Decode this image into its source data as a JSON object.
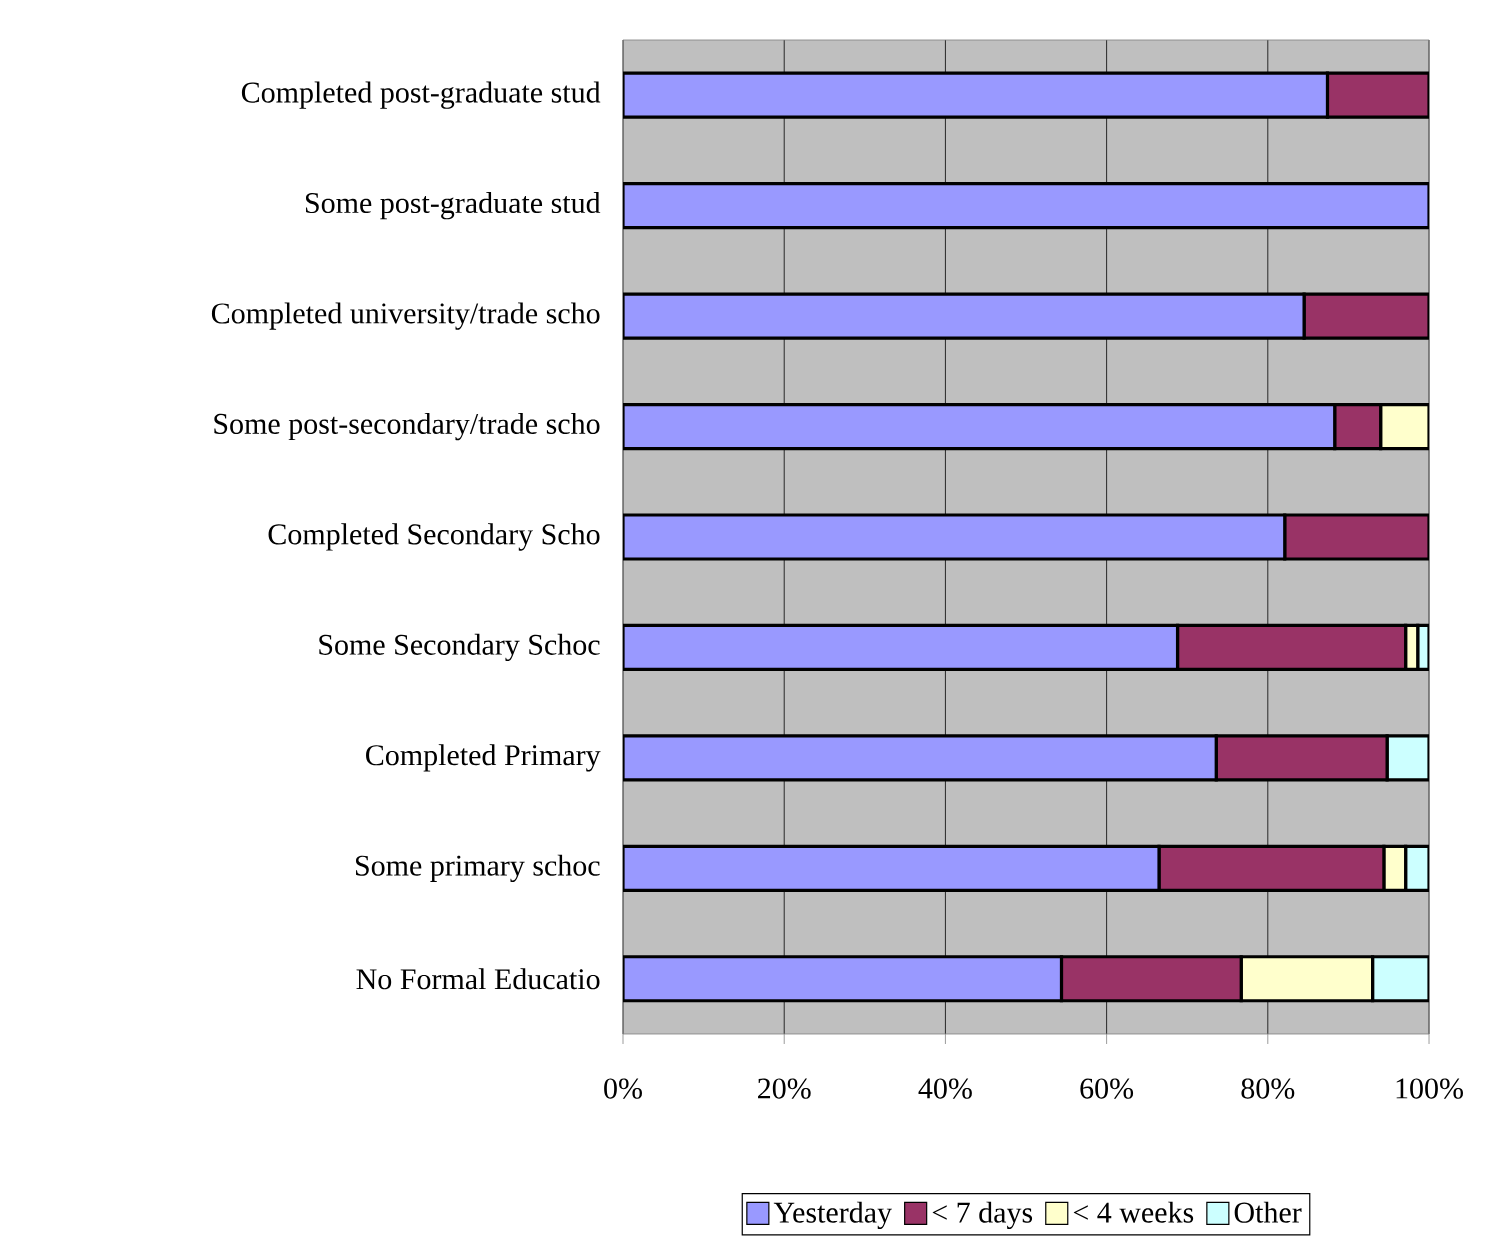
{
  "chart_data": {
    "type": "bar",
    "orientation": "horizontal",
    "stacked": true,
    "categories": [
      "Completed post-graduate stud",
      "Some post-graduate stud",
      "Completed university/trade scho",
      "Some post-secondary/trade scho",
      "Completed Secondary Scho",
      "Some Secondary Schoc",
      "Completed Primary",
      "Some primary schoc",
      "No Formal Educatio"
    ],
    "series": [
      {
        "name": "Yesterday",
        "color": "#9999ff",
        "values": [
          87.4,
          100,
          84.5,
          88.3,
          82.1,
          68.8,
          73.6,
          66.5,
          54.4
        ]
      },
      {
        "name": "< 7 days",
        "color": "#993366",
        "values": [
          12.6,
          0,
          15.5,
          5.7,
          17.9,
          28.3,
          21.2,
          27.9,
          22.3
        ]
      },
      {
        "name": "< 4 weeks",
        "color": "#ffffcc",
        "values": [
          0,
          0,
          0,
          6.0,
          0,
          1.5,
          0,
          2.7,
          16.3
        ]
      },
      {
        "name": "Other",
        "color": "#ccffff",
        "values": [
          0,
          0,
          0,
          0,
          0,
          1.4,
          5.2,
          2.9,
          7.0
        ]
      }
    ],
    "xlim": [
      0,
      100
    ],
    "xticks": [
      {
        "value": 0,
        "label": "0%"
      },
      {
        "value": 20,
        "label": "20%"
      },
      {
        "value": 40,
        "label": "40%"
      },
      {
        "value": 60,
        "label": "60%"
      },
      {
        "value": 80,
        "label": "80%"
      },
      {
        "value": 100,
        "label": "100%"
      }
    ],
    "grid": "x",
    "legend": "bottom"
  }
}
